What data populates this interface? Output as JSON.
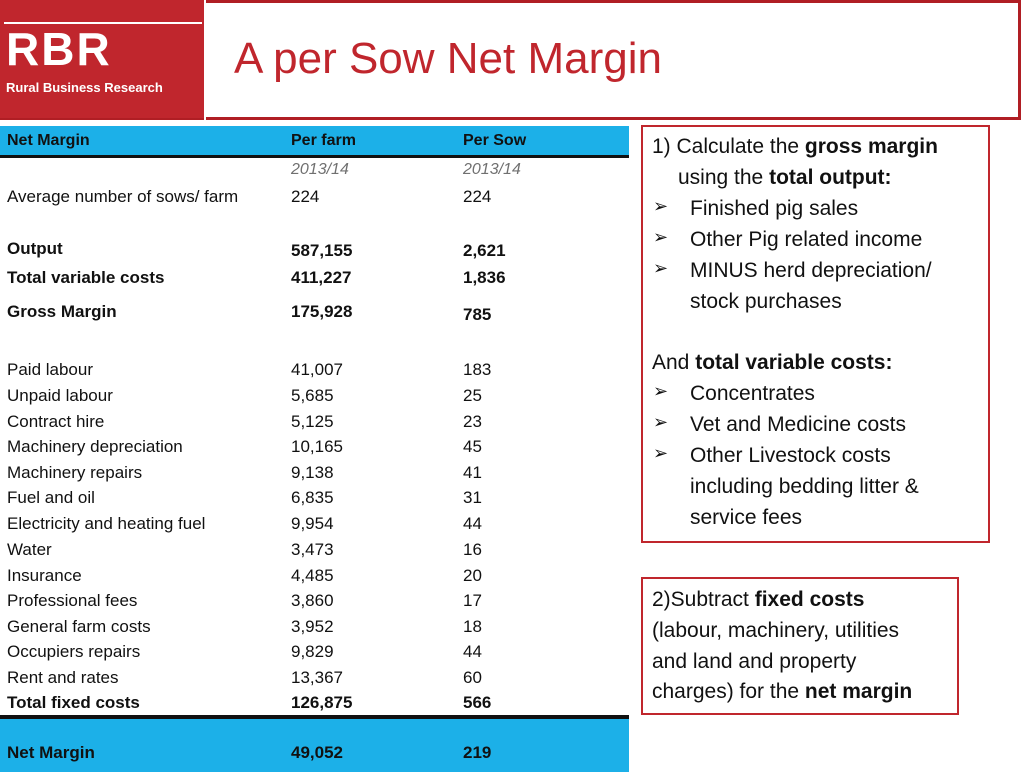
{
  "logo": {
    "text": "RBR",
    "subtitle": "Rural Business Research"
  },
  "title": "A per Sow Net Margin",
  "table": {
    "headers": [
      "Net Margin",
      "Per farm",
      "Per Sow"
    ],
    "year_farm": "2013/14",
    "year_sow": "2013/14",
    "sows": {
      "label": "Average number of sows/ farm",
      "farm": "224",
      "sow": "224"
    },
    "output": {
      "label": "Output",
      "farm": "587,155",
      "sow": "2,621"
    },
    "tvc": {
      "label": "Total variable costs",
      "farm": "411,227",
      "sow": "1,836"
    },
    "gross": {
      "label": "Gross Margin",
      "farm": "175,928",
      "sow": "785"
    },
    "fixed": [
      {
        "label": "Paid labour",
        "farm": "41,007",
        "sow": "183"
      },
      {
        "label": "Unpaid labour",
        "farm": "5,685",
        "sow": "25"
      },
      {
        "label": "Contract hire",
        "farm": "5,125",
        "sow": "23"
      },
      {
        "label": "Machinery depreciation",
        "farm": "10,165",
        "sow": "45"
      },
      {
        "label": "Machinery repairs",
        "farm": "9,138",
        "sow": "41"
      },
      {
        "label": "Fuel and oil",
        "farm": "6,835",
        "sow": "31"
      },
      {
        "label": "Electricity and heating fuel",
        "farm": "9,954",
        "sow": "44"
      },
      {
        "label": "Water",
        "farm": "3,473",
        "sow": "16"
      },
      {
        "label": "Insurance",
        "farm": "4,485",
        "sow": "20"
      },
      {
        "label": "Professional fees",
        "farm": "3,860",
        "sow": "17"
      },
      {
        "label": "General farm costs",
        "farm": "3,952",
        "sow": "18"
      },
      {
        "label": "Occupiers repairs",
        "farm": "9,829",
        "sow": "44"
      },
      {
        "label": "Rent and rates",
        "farm": "13,367",
        "sow": "60"
      }
    ],
    "tfc": {
      "label": "Total fixed costs",
      "farm": "126,875",
      "sow": "566"
    },
    "net": {
      "label": "Net Margin",
      "farm": "49,052",
      "sow": "219"
    }
  },
  "box1": {
    "l1a": "1) Calculate the ",
    "l1b": "gross margin",
    "l2a": "using the ",
    "l2b": "total output:",
    "b1": "Finished pig sales",
    "b2": "Other Pig related income",
    "b3a": "MINUS herd depreciation/",
    "b3b": "stock purchases",
    "l3a": "And ",
    "l3b": "total variable costs:",
    "c1": "Concentrates",
    "c2": "Vet and Medicine costs",
    "c3a": "Other Livestock costs",
    "c3b": "including bedding litter &",
    "c3c": "service fees",
    "arrow": "➢"
  },
  "box2": {
    "l1a": "2)Subtract ",
    "l1b": "fixed costs",
    "l2": "(labour, machinery, utilities",
    "l3": "and land and property",
    "l4a": "charges) for the ",
    "l4b": "net margin"
  },
  "colors": {
    "brand_red": "#c0262d",
    "header_blue": "#1cb0e8"
  }
}
